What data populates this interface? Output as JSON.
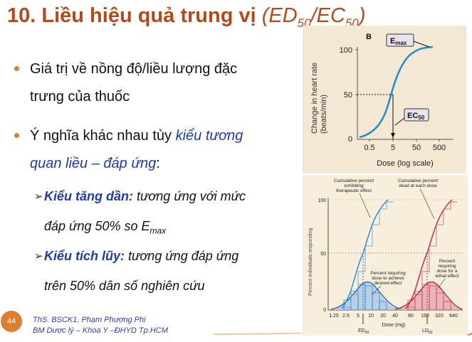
{
  "slide": {
    "title_main": "10. Liều hiệu quả trung vị ",
    "title_paren": "(ED",
    "title_sub1": "50",
    "title_slash": "/EC",
    "title_sub2": "50",
    "title_close": ")",
    "bullets": [
      {
        "line1": "Giá trị về nồng độ/liều lượng đặc",
        "line2": "trưng của thuốc"
      },
      {
        "line1_plain": "Ý nghĩa khác nhau tùy ",
        "line1_blue": "kiểu tương",
        "line2_blue": "quan liều – đáp ứng",
        "line2_plain": ":"
      }
    ],
    "subs": [
      {
        "bold": "Kiểu tăng dần:",
        "rest": " tương ứng với mức",
        "line2": "đáp ứng 50% so E",
        "line2_sub": "max"
      },
      {
        "bold": "Kiểu tích lũy:",
        "rest": " tương ứng đáp ứng",
        "line2": "trên 50% dân số nghiên cứu"
      }
    ],
    "page_number": "44",
    "footer_line1": "ThS. BSCK1. Phạm Phương Phi",
    "footer_line2": "BM Dược lý – Khoa Y –ĐHYD Tp.HCM",
    "colors": {
      "title": "#B5491B",
      "accent": "#E17E2D",
      "blue_text": "#1F3BA8",
      "figure_bg": "#F4E7D3"
    }
  },
  "figure_top": {
    "panel_letter": "B",
    "ylabel_line1": "Change in heart rate",
    "ylabel_line2": "(beats/min)",
    "y_ticks": [
      "100",
      "50",
      "0"
    ],
    "x_ticks": [
      "0.5",
      "5",
      "50",
      "500"
    ],
    "xlabel": "Dose (log scale)",
    "emax_label": "E",
    "emax_sub": "max",
    "ec50_label": "EC",
    "ec50_sub": "50"
  },
  "figure_bottom": {
    "ylabel": "Percent individuals responding",
    "y_ticks": [
      "100",
      "50",
      "0"
    ],
    "x_ticks": [
      "1.25",
      "2.5",
      "5",
      "10",
      "20",
      "40",
      "80",
      "160",
      "320",
      "640"
    ],
    "xlabel": "Dose (mg)",
    "ed50": "ED",
    "ed50_sub": "50",
    "ld50": "LD",
    "ld50_sub": "50",
    "ann_cum_ther": [
      "Cumulative percent",
      "exhibiting",
      "therapeutic effect"
    ],
    "ann_cum_dead": [
      "Cumulative percent",
      "dead at each dose"
    ],
    "ann_desired": [
      "Percent requiring",
      "dose to achieve",
      "desired effect"
    ],
    "ann_lethal": [
      "Percent",
      "requiring",
      "dose for a",
      "lethal effect"
    ]
  }
}
